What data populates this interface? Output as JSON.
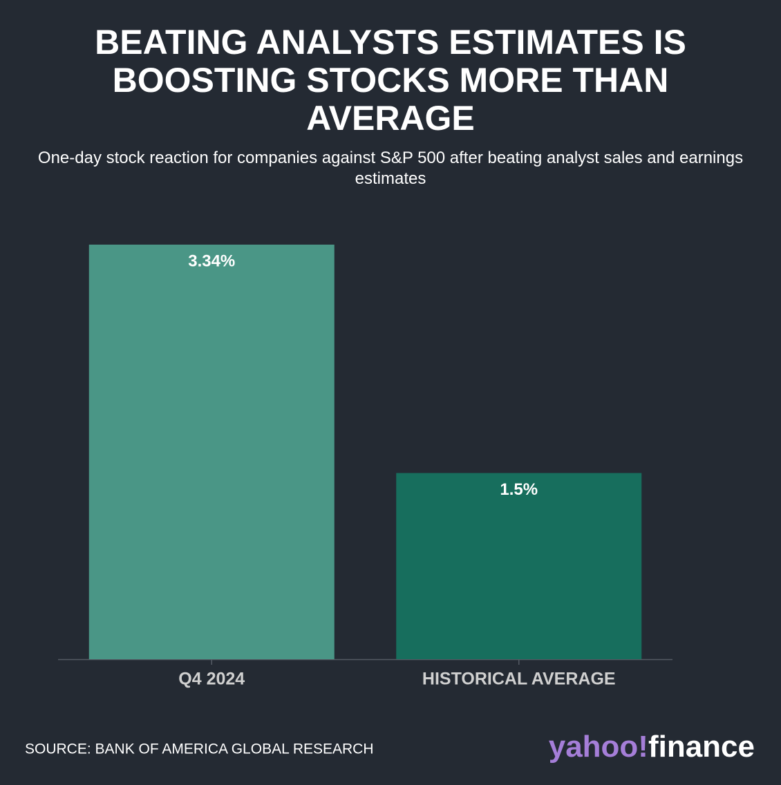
{
  "chart_data": {
    "type": "bar",
    "title": [
      "BEATING ANALYSTS ESTIMATES IS",
      "BOOSTING STOCKS MORE THAN",
      "AVERAGE"
    ],
    "subtitle": "One-day stock reaction for companies against S&P 500 after beating analyst sales and earnings estimates",
    "categories": [
      "Q4 2024",
      "HISTORICAL AVERAGE"
    ],
    "values": [
      3.34,
      1.5
    ],
    "value_labels": [
      "3.34%",
      "1.5%"
    ],
    "colors": [
      "#4a9686",
      "#176e5d"
    ],
    "source": "SOURCE: BANK OF AMERICA GLOBAL RESEARCH",
    "brand": [
      "yahoo!",
      "finance"
    ]
  }
}
